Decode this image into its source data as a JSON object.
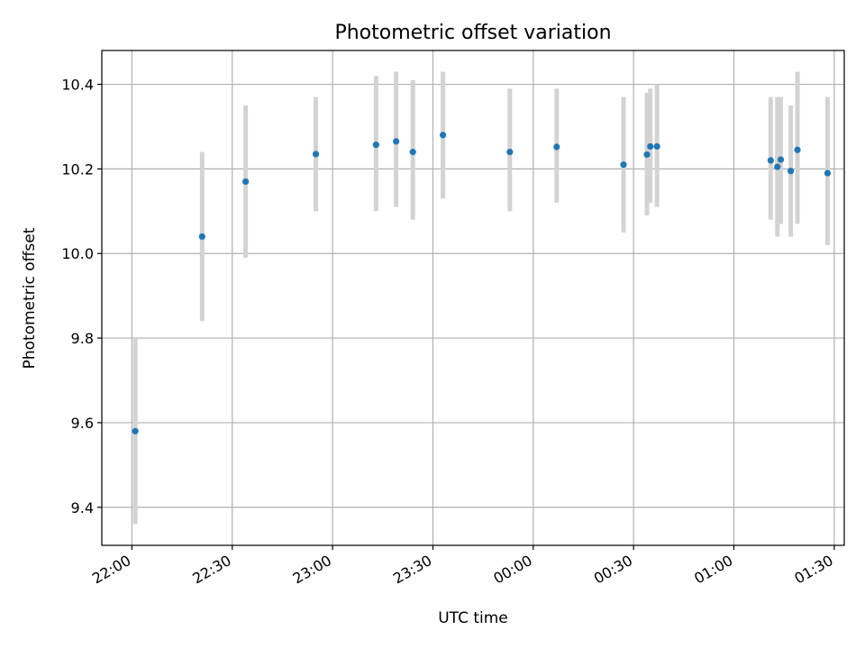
{
  "chart_data": {
    "type": "scatter",
    "title": "Photometric offset variation",
    "xlabel": "UTC time",
    "ylabel": "Photometric offset",
    "x_ticks": [
      "22:00",
      "22:30",
      "23:00",
      "23:30",
      "00:00",
      "00:30",
      "01:00",
      "01:30"
    ],
    "y_ticks": [
      "9.4",
      "9.6",
      "9.8",
      "10.0",
      "10.2",
      "10.4"
    ],
    "xlim": [
      "21:51",
      "01:33"
    ],
    "ylim": [
      9.31,
      10.48
    ],
    "grid": true,
    "colors": {
      "marker": "#1f77b4",
      "errorbar": "#d3d3d3"
    },
    "points": [
      {
        "x": "22:01",
        "y": 9.58,
        "lo": 9.36,
        "hi": 9.8
      },
      {
        "x": "22:21",
        "y": 10.04,
        "lo": 9.84,
        "hi": 10.24
      },
      {
        "x": "22:34",
        "y": 10.17,
        "lo": 9.99,
        "hi": 10.35
      },
      {
        "x": "22:55",
        "y": 10.235,
        "lo": 10.1,
        "hi": 10.37
      },
      {
        "x": "23:13",
        "y": 10.257,
        "lo": 10.1,
        "hi": 10.42
      },
      {
        "x": "23:19",
        "y": 10.265,
        "lo": 10.11,
        "hi": 10.43
      },
      {
        "x": "23:24",
        "y": 10.24,
        "lo": 10.08,
        "hi": 10.41
      },
      {
        "x": "23:33",
        "y": 10.28,
        "lo": 10.13,
        "hi": 10.43
      },
      {
        "x": "23:53",
        "y": 10.24,
        "lo": 10.1,
        "hi": 10.39
      },
      {
        "x": "00:07",
        "y": 10.252,
        "lo": 10.12,
        "hi": 10.39
      },
      {
        "x": "00:27",
        "y": 10.21,
        "lo": 10.05,
        "hi": 10.37
      },
      {
        "x": "00:34",
        "y": 10.234,
        "lo": 10.09,
        "hi": 10.38
      },
      {
        "x": "00:35",
        "y": 10.253,
        "lo": 10.12,
        "hi": 10.39
      },
      {
        "x": "00:37",
        "y": 10.253,
        "lo": 10.11,
        "hi": 10.4
      },
      {
        "x": "01:11",
        "y": 10.22,
        "lo": 10.08,
        "hi": 10.37
      },
      {
        "x": "01:13",
        "y": 10.205,
        "lo": 10.04,
        "hi": 10.37
      },
      {
        "x": "01:14",
        "y": 10.222,
        "lo": 10.07,
        "hi": 10.37
      },
      {
        "x": "01:17",
        "y": 10.195,
        "lo": 10.04,
        "hi": 10.35
      },
      {
        "x": "01:19",
        "y": 10.245,
        "lo": 10.07,
        "hi": 10.43
      },
      {
        "x": "01:28",
        "y": 10.19,
        "lo": 10.02,
        "hi": 10.37
      }
    ]
  }
}
